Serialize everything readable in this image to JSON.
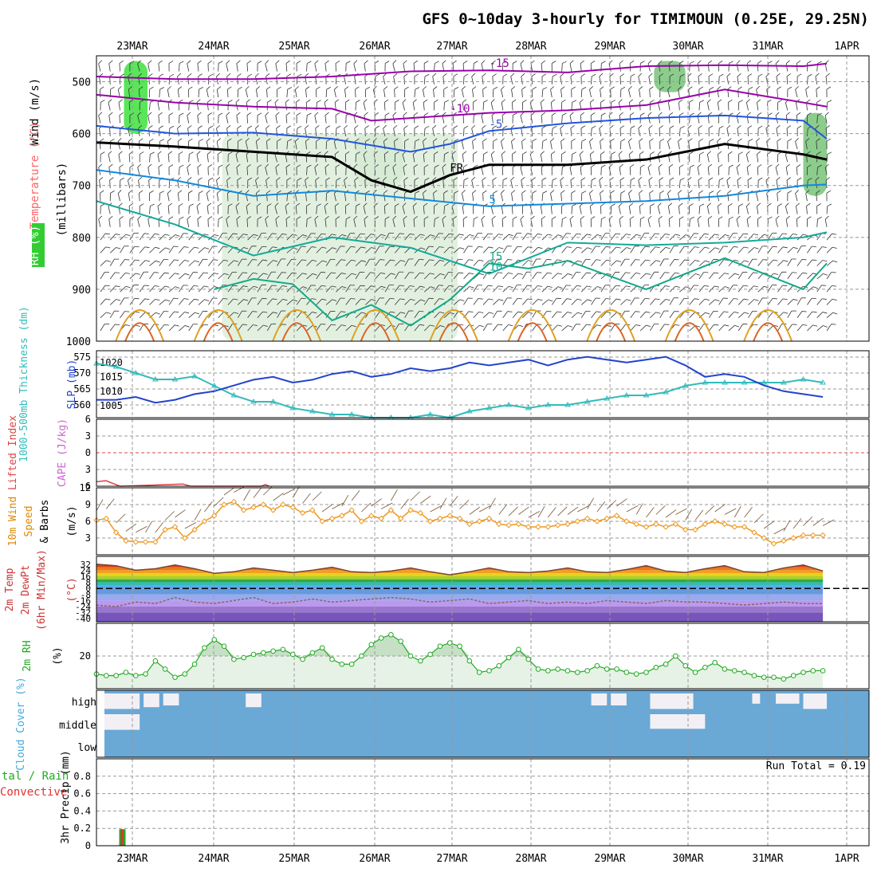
{
  "title": "GFS 0~10day 3-hourly for TIMIMOUN (0.25E, 29.25N)",
  "chart_data": [
    {
      "type": "line",
      "panel": "upper-air",
      "x_labels": [
        "23MAR",
        "24MAR",
        "25MAR",
        "26MAR",
        "27MAR",
        "28MAR",
        "29MAR",
        "30MAR",
        "31MAR",
        "1APR"
      ],
      "ylabel_parts": [
        {
          "text": "Wind (m/s)",
          "color": "#000000"
        },
        {
          "text": "Temperature (°C)",
          "color": "#ff6666"
        },
        {
          "text": "RH (%)",
          "color": "#22bb22"
        },
        {
          "text": "(millibars)",
          "color": "#000000"
        }
      ],
      "yticks": [
        500,
        600,
        700,
        800,
        900,
        1000
      ],
      "ylim": [
        1000,
        450
      ],
      "isotherms": [
        {
          "label": "-15",
          "color": "#9900aa",
          "t": [
            0,
            1,
            2,
            3,
            4,
            5,
            6,
            7,
            8,
            9,
            9.3
          ],
          "p": [
            490,
            495,
            495,
            490,
            480,
            478,
            482,
            470,
            468,
            470,
            465
          ]
        },
        {
          "label": "-10",
          "color": "#9900aa",
          "t": [
            0,
            1,
            2,
            3,
            3.5,
            4,
            4.5,
            5,
            6,
            7,
            8,
            9,
            9.3
          ],
          "p": [
            525,
            540,
            548,
            552,
            575,
            570,
            565,
            560,
            555,
            545,
            515,
            540,
            548
          ]
        },
        {
          "label": "-5",
          "color": "#2255dd",
          "t": [
            0,
            1,
            2,
            3,
            4,
            4.5,
            5,
            6,
            7,
            8,
            9,
            9.3
          ],
          "p": [
            585,
            600,
            598,
            610,
            635,
            620,
            595,
            580,
            570,
            565,
            575,
            610
          ]
        },
        {
          "label": "FR",
          "color": "#000000",
          "t": [
            0,
            1,
            2,
            3,
            3.5,
            4,
            4.5,
            5,
            6,
            7,
            8,
            9,
            9.3
          ],
          "p": [
            617,
            625,
            635,
            645,
            690,
            712,
            680,
            660,
            660,
            650,
            620,
            640,
            650
          ]
        },
        {
          "label": "5",
          "color": "#1188dd",
          "t": [
            0,
            1,
            2,
            3,
            4,
            5,
            6,
            7,
            8,
            9,
            9.3
          ],
          "p": [
            670,
            690,
            720,
            710,
            725,
            740,
            735,
            730,
            720,
            700,
            698
          ]
        },
        {
          "label": "10",
          "color": "#11aa99",
          "t": [
            0,
            1,
            2,
            3,
            4,
            5,
            6,
            7,
            8,
            9,
            9.3
          ],
          "p": [
            730,
            775,
            835,
            800,
            820,
            870,
            810,
            815,
            810,
            800,
            790
          ]
        },
        {
          "label": "15",
          "color": "#11aa88",
          "t": [
            1.5,
            2,
            2.5,
            3,
            3.5,
            4,
            4.5,
            5,
            5.5,
            6,
            7,
            8,
            9,
            9.3
          ],
          "p": [
            900,
            880,
            890,
            960,
            930,
            970,
            920,
            850,
            860,
            845,
            900,
            840,
            900,
            850
          ]
        }
      ],
      "rh_zones": [
        {
          "t0": 0.35,
          "t1": 0.65,
          "p0": 460,
          "p1": 600,
          "level": "high"
        },
        {
          "t0": 3.3,
          "t1": 3.9,
          "p0": 600,
          "p1": 700,
          "level": "mid"
        },
        {
          "t0": 7.1,
          "t1": 7.5,
          "p0": 460,
          "p1": 520,
          "level": "mid"
        },
        {
          "t0": 9.0,
          "t1": 9.3,
          "p0": 560,
          "p1": 720,
          "level": "mid"
        },
        {
          "t0": 1.6,
          "t1": 4.6,
          "p0": 600,
          "p1": 1000,
          "level": "low"
        }
      ],
      "annotations": [
        "-15",
        "-10",
        "-5",
        "FR",
        "5",
        "-5",
        "10",
        "5",
        "15",
        "-10",
        "-5",
        "10",
        "15"
      ]
    },
    {
      "type": "line",
      "panel": "thickness-slp",
      "ylabel_left": "1000-500mb Thickness (dm)",
      "ylabel_right": "SLP (mb)",
      "yticks_left": [
        560,
        565,
        570,
        575
      ],
      "yticks_right": [
        1005,
        1010,
        1015,
        1020
      ],
      "x": [
        0,
        0.25,
        0.5,
        0.75,
        1,
        1.25,
        1.5,
        1.75,
        2,
        2.25,
        2.5,
        2.75,
        3,
        3.25,
        3.5,
        3.75,
        4,
        4.25,
        4.5,
        4.75,
        5,
        5.25,
        5.5,
        5.75,
        6,
        6.25,
        6.5,
        6.75,
        7,
        7.25,
        7.5,
        7.75,
        8,
        8.25,
        8.5,
        8.75,
        9,
        9.25
      ],
      "series": [
        {
          "name": "thickness",
          "color": "#33bbbb",
          "values": [
            573,
            572,
            570,
            568,
            568,
            569,
            566,
            563,
            561,
            561,
            559,
            558,
            557,
            557,
            556,
            556,
            556,
            557,
            556,
            558,
            559,
            560,
            559,
            560,
            560,
            561,
            562,
            563,
            563,
            564,
            566,
            567,
            567,
            567,
            567,
            567,
            568,
            567
          ]
        },
        {
          "name": "slp",
          "color": "#2244cc",
          "values": [
            1007,
            1007,
            1008,
            1006,
            1007,
            1009,
            1010,
            1012,
            1014,
            1015,
            1013,
            1014,
            1016,
            1017,
            1015,
            1016,
            1018,
            1017,
            1018,
            1020,
            1019,
            1020,
            1021,
            1019,
            1021,
            1022,
            1021,
            1020,
            1021,
            1022,
            1019,
            1015,
            1016,
            1015,
            1012,
            1010,
            1009,
            1008
          ]
        }
      ]
    },
    {
      "type": "line",
      "panel": "stability",
      "ylabel_left": "Lifted Index",
      "ylabel_right": "CAPE (J/kg)",
      "yticks": [
        "6",
        "3",
        "0",
        "3",
        "6"
      ],
      "series": [
        {
          "name": "lifted-index",
          "color": "#dd4444",
          "points": [
            [
              0,
              5.2
            ],
            [
              0.12,
              5.0
            ],
            [
              0.3,
              6
            ],
            [
              1.1,
              5.6
            ],
            [
              1.2,
              6
            ],
            [
              2.1,
              6
            ],
            [
              2.15,
              5.7
            ],
            [
              2.2,
              6
            ]
          ]
        }
      ]
    },
    {
      "type": "line",
      "panel": "wind10m",
      "ylabel_parts": [
        {
          "text": "10m Wind",
          "color": "#dd8800"
        },
        {
          "text": "Speed",
          "color": "#dd8800"
        },
        {
          "text": "& Barbs",
          "color": "#000000"
        },
        {
          "text": "(m/s)",
          "color": "#000000"
        }
      ],
      "yticks": [
        3,
        6,
        9,
        12
      ],
      "x": [
        0,
        0.125,
        0.25,
        0.375,
        0.5,
        0.625,
        0.75,
        0.875,
        1,
        1.125,
        1.25,
        1.375,
        1.5,
        1.625,
        1.75,
        1.875,
        2,
        2.125,
        2.25,
        2.375,
        2.5,
        2.625,
        2.75,
        2.875,
        3,
        3.125,
        3.25,
        3.375,
        3.5,
        3.625,
        3.75,
        3.875,
        4,
        4.125,
        4.25,
        4.375,
        4.5,
        4.625,
        4.75,
        4.875,
        5,
        5.125,
        5.25,
        5.375,
        5.5,
        5.625,
        5.75,
        5.875,
        6,
        6.125,
        6.25,
        6.375,
        6.5,
        6.625,
        6.75,
        6.875,
        7,
        7.125,
        7.25,
        7.375,
        7.5,
        7.625,
        7.75,
        7.875,
        8,
        8.125,
        8.25,
        8.375,
        8.5,
        8.625,
        8.75,
        8.875,
        9,
        9.125,
        9.25
      ],
      "series": [
        {
          "name": "speed",
          "color": "#ee9922",
          "values": [
            6.2,
            6.5,
            4,
            2.5,
            2.3,
            2.3,
            2.3,
            4.5,
            5,
            3,
            4.5,
            6,
            7,
            9,
            9.5,
            8,
            8.5,
            9,
            8,
            9,
            8.5,
            7.5,
            8,
            6,
            6.5,
            7,
            8,
            6,
            7,
            6.5,
            8,
            6.5,
            8,
            7.5,
            6,
            6.5,
            7,
            6.5,
            5.5,
            6,
            6.5,
            5.5,
            5.3,
            5.5,
            5,
            5,
            5,
            5.3,
            5.5,
            6,
            6.5,
            6,
            6.5,
            7,
            6,
            5.5,
            5,
            5.5,
            5,
            5.5,
            4.5,
            4.5,
            5.5,
            6,
            5.5,
            5,
            5,
            4,
            3,
            2,
            2.5,
            3,
            3.5,
            3.5,
            3.5
          ]
        }
      ]
    },
    {
      "type": "area",
      "panel": "temperature2m",
      "ylabel_parts": [
        {
          "text": "2m Temp",
          "color": "#cc3333"
        },
        {
          "text": "2m DewPt",
          "color": "#cc3333"
        },
        {
          "text": "(6hr Min/Max)",
          "color": "#cc3333"
        },
        {
          "text": "(°C)",
          "color": "#cc3333"
        }
      ],
      "yticks": [
        "32",
        "24",
        "16",
        "8",
        "0",
        "-8",
        "-16",
        "-24",
        "-32",
        "-40"
      ],
      "x": [
        0,
        0.25,
        0.5,
        0.75,
        1,
        1.25,
        1.5,
        1.75,
        2,
        2.25,
        2.5,
        2.75,
        3,
        3.25,
        3.5,
        3.75,
        4,
        4.25,
        4.5,
        4.75,
        5,
        5.25,
        5.5,
        5.75,
        6,
        6.25,
        6.5,
        6.75,
        7,
        7.25,
        7.5,
        7.75,
        8,
        8.25,
        8.5,
        8.75,
        9,
        9.25
      ],
      "series": [
        {
          "name": "temp",
          "color": "#774433",
          "values": [
            32,
            30,
            24,
            26,
            31,
            26,
            20,
            22,
            27,
            24,
            21,
            24,
            28,
            22,
            21,
            23,
            27,
            22,
            18,
            22,
            27,
            22,
            21,
            23,
            27,
            22,
            21,
            25,
            30,
            23,
            21,
            26,
            30,
            22,
            21,
            27,
            31,
            23
          ]
        },
        {
          "name": "dewpoint",
          "color": "#886666",
          "values": [
            -22,
            -24,
            -18,
            -20,
            -12,
            -18,
            -20,
            -16,
            -12,
            -20,
            -18,
            -14,
            -18,
            -16,
            -14,
            -12,
            -14,
            -18,
            -16,
            -14,
            -20,
            -18,
            -16,
            -20,
            -18,
            -20,
            -16,
            -18,
            -20,
            -16,
            -18,
            -18,
            -20,
            -22,
            -20,
            -18,
            -20,
            -20
          ]
        }
      ]
    },
    {
      "type": "area",
      "panel": "rh2m",
      "ylabel_parts": [
        {
          "text": "2m RH",
          "color": "#22aa22"
        },
        {
          "text": "(%)",
          "color": "#000000"
        }
      ],
      "yticks": [
        20
      ],
      "x": [
        0,
        0.125,
        0.25,
        0.375,
        0.5,
        0.625,
        0.75,
        0.875,
        1,
        1.125,
        1.25,
        1.375,
        1.5,
        1.625,
        1.75,
        1.875,
        2,
        2.125,
        2.25,
        2.375,
        2.5,
        2.625,
        2.75,
        2.875,
        3,
        3.125,
        3.25,
        3.375,
        3.5,
        3.625,
        3.75,
        3.875,
        4,
        4.125,
        4.25,
        4.375,
        4.5,
        4.625,
        4.75,
        4.875,
        5,
        5.125,
        5.25,
        5.375,
        5.5,
        5.625,
        5.75,
        5.875,
        6,
        6.125,
        6.25,
        6.375,
        6.5,
        6.625,
        6.75,
        6.875,
        7,
        7.125,
        7.25,
        7.375,
        7.5,
        7.625,
        7.75,
        7.875,
        8,
        8.125,
        8.25,
        8.375,
        8.5,
        8.625,
        8.75,
        8.875,
        9,
        9.125,
        9.25
      ],
      "series": [
        {
          "name": "rh",
          "color": "#22aa22",
          "values": [
            9,
            8,
            8,
            10,
            8,
            9,
            17,
            12,
            7,
            9,
            15,
            25,
            30,
            26,
            18,
            19,
            21,
            22,
            23,
            24,
            21,
            18,
            22,
            25,
            18,
            15,
            15,
            20,
            27,
            31,
            33,
            29,
            20,
            17,
            21,
            26,
            28,
            26,
            17,
            10,
            11,
            14,
            19,
            24,
            18,
            12,
            11,
            12,
            11,
            10,
            11,
            14,
            12,
            12,
            10,
            9,
            10,
            13,
            15,
            20,
            14,
            10,
            13,
            16,
            12,
            11,
            10,
            8,
            7,
            7,
            6,
            8,
            10,
            11,
            11
          ]
        }
      ]
    },
    {
      "type": "heatmap",
      "panel": "cloud-cover",
      "ylabel": "Cloud Cover (%)",
      "row_labels": [
        "high",
        "middle",
        "low"
      ],
      "blocks": [
        {
          "row": "high",
          "t0": 0.1,
          "t1": 0.55,
          "a": 0.7
        },
        {
          "row": "high",
          "t0": 0.6,
          "t1": 0.8,
          "a": 0.6
        },
        {
          "row": "high",
          "t0": 0.85,
          "t1": 1.05,
          "a": 0.5
        },
        {
          "row": "high",
          "t0": 1.9,
          "t1": 2.1,
          "a": 0.6
        },
        {
          "row": "middle",
          "t0": 0.1,
          "t1": 0.55,
          "a": 0.6
        },
        {
          "row": "high",
          "t0": 6.3,
          "t1": 6.5,
          "a": 0.5
        },
        {
          "row": "high",
          "t0": 6.55,
          "t1": 6.75,
          "a": 0.5
        },
        {
          "row": "high",
          "t0": 7.05,
          "t1": 7.6,
          "a": 0.7
        },
        {
          "row": "middle",
          "t0": 7.05,
          "t1": 7.75,
          "a": 0.55
        },
        {
          "row": "high",
          "t0": 8.35,
          "t1": 8.45,
          "a": 0.4
        },
        {
          "row": "high",
          "t0": 8.65,
          "t1": 8.95,
          "a": 0.4
        },
        {
          "row": "high",
          "t0": 9.0,
          "t1": 9.3,
          "a": 0.7
        }
      ]
    },
    {
      "type": "bar",
      "panel": "precip",
      "ylabel_parts": [
        {
          "text": "Total / Rain",
          "color": "#22aa22"
        },
        {
          "text": "Convective",
          "color": "#dd3333"
        },
        {
          "text": "3hr Precip (mm)",
          "color": "#000000"
        }
      ],
      "yticks": [
        "0",
        "0.2",
        "0.4",
        "0.6",
        "0.8"
      ],
      "annotation": "Run Total = 0.19",
      "bars": [
        {
          "x": 0.33,
          "total": 0.19,
          "convective": 0.19
        }
      ]
    }
  ]
}
